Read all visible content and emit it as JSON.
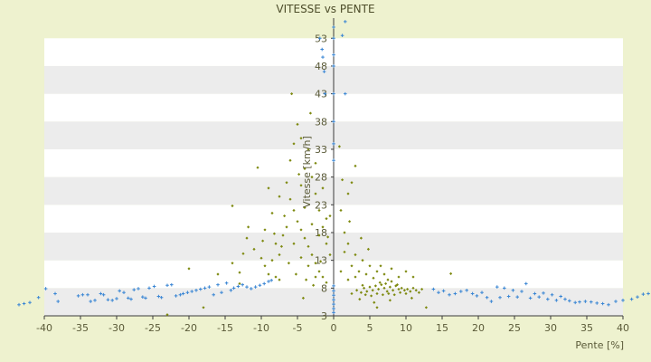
{
  "chart_data": {
    "type": "scatter",
    "title": "VITESSE vs PENTE",
    "xlabel": "Pente [%]",
    "ylabel": "Vitesse [km/h]",
    "xlim": [
      -40,
      40
    ],
    "ylim": [
      3,
      55
    ],
    "x_ticks": [
      -40,
      -35,
      -30,
      -25,
      -20,
      -15,
      -10,
      -5,
      0,
      5,
      10,
      15,
      20,
      25,
      30,
      35,
      40
    ],
    "y_ticks": [
      3,
      8,
      13,
      18,
      23,
      28,
      33,
      38,
      43,
      48,
      53
    ],
    "grid": "alternating horizontal bands",
    "legend": "none",
    "colors": {
      "band_light": "#ffffff",
      "band_dark": "#ececec",
      "background": "#eef2cf",
      "axis": "#333333"
    },
    "series": [
      {
        "color": "#3a86d4",
        "marker": "plus",
        "points": [
          [
            -43.5,
            5.0
          ],
          [
            -42.8,
            5.2
          ],
          [
            -42.0,
            5.4
          ],
          [
            -40.8,
            6.3
          ],
          [
            -39.8,
            7.9
          ],
          [
            -38.5,
            7.0
          ],
          [
            -38.1,
            5.6
          ],
          [
            -35.3,
            6.6
          ],
          [
            -34.7,
            6.8
          ],
          [
            -34.0,
            6.8
          ],
          [
            -33.6,
            5.6
          ],
          [
            -33.0,
            5.8
          ],
          [
            -32.2,
            7.0
          ],
          [
            -31.8,
            6.8
          ],
          [
            -31.2,
            5.9
          ],
          [
            -30.6,
            5.8
          ],
          [
            -30.0,
            6.1
          ],
          [
            -29.6,
            7.5
          ],
          [
            -29.0,
            7.2
          ],
          [
            -28.4,
            6.2
          ],
          [
            -28.0,
            6.0
          ],
          [
            -27.6,
            7.7
          ],
          [
            -27.0,
            7.9
          ],
          [
            -26.4,
            6.4
          ],
          [
            -26.0,
            6.2
          ],
          [
            -25.5,
            8.0
          ],
          [
            -24.8,
            8.3
          ],
          [
            -24.2,
            6.5
          ],
          [
            -23.8,
            6.3
          ],
          [
            -23.0,
            8.5
          ],
          [
            -22.4,
            8.6
          ],
          [
            -21.8,
            6.6
          ],
          [
            -21.2,
            6.8
          ],
          [
            -20.8,
            7.0
          ],
          [
            -20.2,
            7.2
          ],
          [
            -19.6,
            7.4
          ],
          [
            -19.0,
            7.6
          ],
          [
            -18.4,
            7.8
          ],
          [
            -17.8,
            8.0
          ],
          [
            -17.2,
            8.2
          ],
          [
            -16.6,
            6.8
          ],
          [
            -16.0,
            8.6
          ],
          [
            -15.5,
            7.2
          ],
          [
            -14.8,
            8.9
          ],
          [
            -14.2,
            7.6
          ],
          [
            -13.8,
            8.0
          ],
          [
            -13.2,
            8.3
          ],
          [
            -12.6,
            8.6
          ],
          [
            -12.0,
            8.2
          ],
          [
            -11.4,
            7.9
          ],
          [
            -10.8,
            8.2
          ],
          [
            -10.2,
            8.5
          ],
          [
            -9.6,
            8.8
          ],
          [
            -9.0,
            9.2
          ],
          [
            -8.6,
            9.4
          ],
          [
            0.0,
            3.6
          ],
          [
            0.0,
            4.3
          ],
          [
            0.0,
            5.1
          ],
          [
            0.0,
            5.9
          ],
          [
            0.0,
            6.7
          ],
          [
            0.0,
            7.5
          ],
          [
            0.0,
            8.4
          ],
          [
            0.0,
            31.0
          ],
          [
            0.0,
            34.0
          ],
          [
            0.0,
            38.0
          ],
          [
            0.0,
            43.0
          ],
          [
            0.0,
            48.0
          ],
          [
            0.0,
            50.0
          ],
          [
            0.0,
            53.0
          ],
          [
            0.0,
            55.0
          ],
          [
            -1.2,
            43.0
          ],
          [
            -1.3,
            47.0
          ],
          [
            -1.6,
            51.0
          ],
          [
            -1.9,
            53.0
          ],
          [
            1.2,
            53.5
          ],
          [
            1.6,
            56.0
          ],
          [
            1.6,
            43.0
          ],
          [
            -1.5,
            49.6
          ],
          [
            13.8,
            7.8
          ],
          [
            14.5,
            7.2
          ],
          [
            15.2,
            7.5
          ],
          [
            16.0,
            6.8
          ],
          [
            16.8,
            7.0
          ],
          [
            17.6,
            7.4
          ],
          [
            18.4,
            7.6
          ],
          [
            19.2,
            7.0
          ],
          [
            19.8,
            6.6
          ],
          [
            20.5,
            7.2
          ],
          [
            21.2,
            6.3
          ],
          [
            21.8,
            5.6
          ],
          [
            22.6,
            8.2
          ],
          [
            23.0,
            6.3
          ],
          [
            23.6,
            8.0
          ],
          [
            24.2,
            6.5
          ],
          [
            24.8,
            7.6
          ],
          [
            25.4,
            6.4
          ],
          [
            26.0,
            7.4
          ],
          [
            26.6,
            8.8
          ],
          [
            27.2,
            6.2
          ],
          [
            27.8,
            7.0
          ],
          [
            28.4,
            6.4
          ],
          [
            29.0,
            7.1
          ],
          [
            29.6,
            6.0
          ],
          [
            30.2,
            6.8
          ],
          [
            30.8,
            5.8
          ],
          [
            31.4,
            6.5
          ],
          [
            32.0,
            6.0
          ],
          [
            32.6,
            5.7
          ],
          [
            33.4,
            5.4
          ],
          [
            34.0,
            5.5
          ],
          [
            34.8,
            5.6
          ],
          [
            35.6,
            5.5
          ],
          [
            36.4,
            5.3
          ],
          [
            37.2,
            5.2
          ],
          [
            38.0,
            5.0
          ],
          [
            39.0,
            5.6
          ],
          [
            40.0,
            5.8
          ],
          [
            41.2,
            6.0
          ],
          [
            42.0,
            6.4
          ],
          [
            42.8,
            6.9
          ],
          [
            43.5,
            7.0
          ]
        ]
      },
      {
        "color": "#7e8a10",
        "marker": "diamond",
        "points": [
          [
            -10.5,
            29.7
          ],
          [
            -14.0,
            22.8
          ],
          [
            -11.8,
            19.0
          ],
          [
            -12.0,
            17.0
          ],
          [
            -11.0,
            15.0
          ],
          [
            -10.0,
            13.4
          ],
          [
            -9.5,
            12.0
          ],
          [
            -9.0,
            10.5
          ],
          [
            -8.0,
            10.0
          ],
          [
            -7.5,
            9.5
          ],
          [
            -14.0,
            12.5
          ],
          [
            -13.0,
            10.8
          ],
          [
            -12.5,
            14.2
          ],
          [
            -20.0,
            11.5
          ],
          [
            -16.0,
            10.5
          ],
          [
            -8.5,
            21.5
          ],
          [
            -9.0,
            26.0
          ],
          [
            -9.5,
            18.5
          ],
          [
            -8.0,
            16.0
          ],
          [
            -7.5,
            14.0
          ],
          [
            -6.5,
            27.0
          ],
          [
            -6.0,
            31.0
          ],
          [
            -5.5,
            34.0
          ],
          [
            -5.0,
            37.5
          ],
          [
            -4.5,
            35.0
          ],
          [
            -4.0,
            29.5
          ],
          [
            -3.5,
            33.0
          ],
          [
            -3.0,
            28.0
          ],
          [
            -2.5,
            25.0
          ],
          [
            -2.0,
            22.0
          ],
          [
            -1.5,
            19.0
          ],
          [
            -1.0,
            16.0
          ],
          [
            -0.5,
            14.0
          ],
          [
            -6.0,
            24.0
          ],
          [
            -5.5,
            22.0
          ],
          [
            -5.0,
            20.0
          ],
          [
            -4.5,
            18.5
          ],
          [
            -4.0,
            17.0
          ],
          [
            -3.5,
            15.5
          ],
          [
            -3.0,
            14.0
          ],
          [
            -2.5,
            12.5
          ],
          [
            -2.0,
            11.0
          ],
          [
            -1.5,
            10.0
          ],
          [
            -1.0,
            9.0
          ],
          [
            -6.5,
            19.0
          ],
          [
            -7.0,
            17.5
          ],
          [
            -5.5,
            16.0
          ],
          [
            -4.5,
            13.5
          ],
          [
            -3.5,
            12.0
          ],
          [
            -2.5,
            10.0
          ],
          [
            -7.5,
            24.5
          ],
          [
            -8.5,
            13.0
          ],
          [
            -3.0,
            19.5
          ],
          [
            -4.0,
            22.5
          ],
          [
            -2.0,
            17.5
          ],
          [
            -1.0,
            20.5
          ],
          [
            -4.5,
            26.5
          ],
          [
            -2.5,
            30.5
          ],
          [
            -1.5,
            26.0
          ],
          [
            -0.5,
            21.0
          ],
          [
            -5.8,
            43.0
          ],
          [
            -3.2,
            39.5
          ],
          [
            -4.8,
            28.5
          ],
          [
            -6.8,
            21.0
          ],
          [
            -7.2,
            15.5
          ],
          [
            -8.2,
            17.8
          ],
          [
            -9.8,
            16.5
          ],
          [
            -6.2,
            12.5
          ],
          [
            -5.2,
            10.5
          ],
          [
            -3.8,
            9.5
          ],
          [
            -2.8,
            8.5
          ],
          [
            -1.8,
            12.8
          ],
          [
            -0.8,
            17.2
          ],
          [
            -13.0,
            8.8
          ],
          [
            -4.2,
            6.2
          ],
          [
            -23.0,
            3.2
          ],
          [
            -18.0,
            4.5
          ],
          [
            1.0,
            22.0
          ],
          [
            2.0,
            25.0
          ],
          [
            3.0,
            30.0
          ],
          [
            2.5,
            27.0
          ],
          [
            1.5,
            18.0
          ],
          [
            2.0,
            16.0
          ],
          [
            3.0,
            14.0
          ],
          [
            4.0,
            13.0
          ],
          [
            5.0,
            12.0
          ],
          [
            6.0,
            11.0
          ],
          [
            7.0,
            10.5
          ],
          [
            8.0,
            11.5
          ],
          [
            9.0,
            10.0
          ],
          [
            10.0,
            11.0
          ],
          [
            11.0,
            10.0
          ],
          [
            1.5,
            14.5
          ],
          [
            2.5,
            12.0
          ],
          [
            3.5,
            11.0
          ],
          [
            4.5,
            10.5
          ],
          [
            5.5,
            9.8
          ],
          [
            6.5,
            12.0
          ],
          [
            7.5,
            9.5
          ],
          [
            1.0,
            11.0
          ],
          [
            2.0,
            9.5
          ],
          [
            3.0,
            10.0
          ],
          [
            4.0,
            8.5
          ],
          [
            2.2,
            20.0
          ],
          [
            1.2,
            27.5
          ],
          [
            3.8,
            17.0
          ],
          [
            4.8,
            15.0
          ],
          [
            0.8,
            33.5
          ],
          [
            2.5,
            7.0
          ],
          [
            3.2,
            7.6
          ],
          [
            3.8,
            7.2
          ],
          [
            4.2,
            8.0
          ],
          [
            4.6,
            7.4
          ],
          [
            5.0,
            8.2
          ],
          [
            5.4,
            7.6
          ],
          [
            5.8,
            8.4
          ],
          [
            6.2,
            7.8
          ],
          [
            6.6,
            8.6
          ],
          [
            7.0,
            8.0
          ],
          [
            7.4,
            7.4
          ],
          [
            7.8,
            8.2
          ],
          [
            8.2,
            7.6
          ],
          [
            8.6,
            8.4
          ],
          [
            9.0,
            7.8
          ],
          [
            9.4,
            8.0
          ],
          [
            9.8,
            7.6
          ],
          [
            10.2,
            7.8
          ],
          [
            10.6,
            7.4
          ],
          [
            11.0,
            8.0
          ],
          [
            11.4,
            7.6
          ],
          [
            11.8,
            7.2
          ],
          [
            12.2,
            7.8
          ],
          [
            4.4,
            6.8
          ],
          [
            5.2,
            6.6
          ],
          [
            6.0,
            7.0
          ],
          [
            6.8,
            6.8
          ],
          [
            7.6,
            7.0
          ],
          [
            8.4,
            6.8
          ],
          [
            9.2,
            7.2
          ],
          [
            10.0,
            7.0
          ],
          [
            6.4,
            9.0
          ],
          [
            7.2,
            8.8
          ],
          [
            8.0,
            9.2
          ],
          [
            8.8,
            8.6
          ],
          [
            5.6,
            5.4
          ],
          [
            7.8,
            5.8
          ],
          [
            12.8,
            4.5
          ],
          [
            16.2,
            10.6
          ],
          [
            6.0,
            4.5
          ],
          [
            10.8,
            6.2
          ],
          [
            3.6,
            6.0
          ]
        ]
      }
    ]
  }
}
